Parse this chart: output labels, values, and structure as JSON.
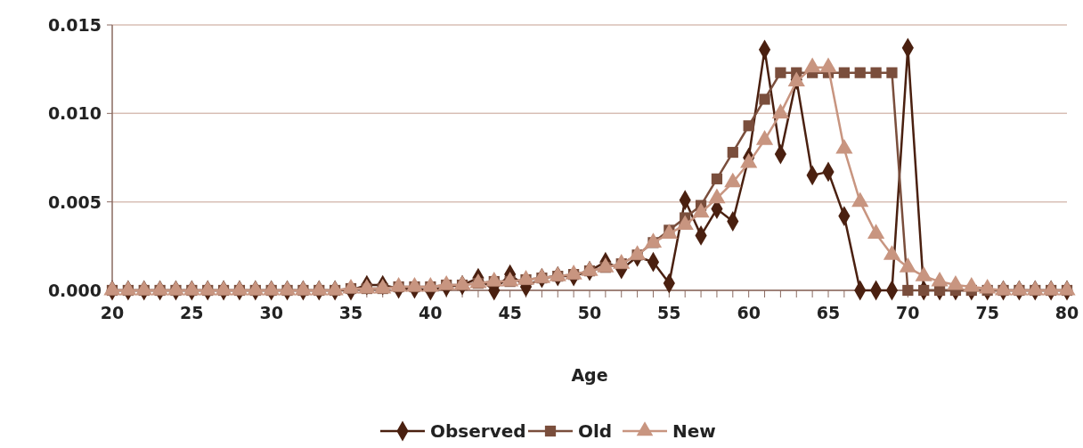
{
  "chart_data": {
    "type": "line",
    "xlabel": "Age",
    "x": [
      20,
      21,
      22,
      23,
      24,
      25,
      26,
      27,
      28,
      29,
      30,
      31,
      32,
      33,
      34,
      35,
      36,
      37,
      38,
      39,
      40,
      41,
      42,
      43,
      44,
      45,
      46,
      47,
      48,
      49,
      50,
      51,
      52,
      53,
      54,
      55,
      56,
      57,
      58,
      59,
      60,
      61,
      62,
      63,
      64,
      65,
      66,
      67,
      68,
      69,
      70,
      71,
      72,
      73,
      74,
      75,
      76,
      77,
      78,
      79,
      80
    ],
    "xlim": [
      20,
      80
    ],
    "xticks": [
      20,
      {
        "value": 21,
        "label": null
      },
      {
        "value": 22,
        "label": null
      },
      {
        "value": 23,
        "label": null
      },
      {
        "value": 24,
        "label": null
      },
      25,
      {
        "value": 26,
        "label": null
      },
      {
        "value": 27,
        "label": null
      },
      {
        "value": 28,
        "label": null
      },
      {
        "value": 29,
        "label": null
      },
      30,
      {
        "value": 31,
        "label": null
      },
      {
        "value": 32,
        "label": null
      },
      {
        "value": 33,
        "label": null
      },
      {
        "value": 34,
        "label": null
      },
      35,
      {
        "value": 36,
        "label": null
      },
      {
        "value": 37,
        "label": null
      },
      {
        "value": 38,
        "label": null
      },
      {
        "value": 39,
        "label": null
      },
      40,
      {
        "value": 41,
        "label": null
      },
      {
        "value": 42,
        "label": null
      },
      {
        "value": 43,
        "label": null
      },
      {
        "value": 44,
        "label": null
      },
      45,
      {
        "value": 46,
        "label": null
      },
      {
        "value": 47,
        "label": null
      },
      {
        "value": 48,
        "label": null
      },
      {
        "value": 49,
        "label": null
      },
      50,
      {
        "value": 51,
        "label": null
      },
      {
        "value": 52,
        "label": null
      },
      {
        "value": 53,
        "label": null
      },
      {
        "value": 54,
        "label": null
      },
      55,
      {
        "value": 56,
        "label": null
      },
      {
        "value": 57,
        "label": null
      },
      {
        "value": 58,
        "label": null
      },
      {
        "value": 59,
        "label": null
      },
      60,
      {
        "value": 61,
        "label": null
      },
      {
        "value": 62,
        "label": null
      },
      {
        "value": 63,
        "label": null
      },
      {
        "value": 64,
        "label": null
      },
      65,
      {
        "value": 66,
        "label": null
      },
      {
        "value": 67,
        "label": null
      },
      {
        "value": 68,
        "label": null
      },
      {
        "value": 69,
        "label": null
      },
      70,
      {
        "value": 71,
        "label": null
      },
      {
        "value": 72,
        "label": null
      },
      {
        "value": 73,
        "label": null
      },
      {
        "value": 74,
        "label": null
      },
      75,
      {
        "value": 76,
        "label": null
      },
      {
        "value": 77,
        "label": null
      },
      {
        "value": 78,
        "label": null
      },
      {
        "value": 79,
        "label": null
      },
      80
    ],
    "ylim": [
      0,
      0.015
    ],
    "yticks": [
      {
        "value": 0,
        "label": "0.000"
      },
      {
        "value": 0.005,
        "label": "0.005"
      },
      {
        "value": 0.01,
        "label": "0.010"
      },
      {
        "value": 0.015,
        "label": "0.015"
      }
    ],
    "grid": "y",
    "legend": "bottom",
    "series": [
      {
        "name": "Observed",
        "color": "#4a2010",
        "marker": "diamond",
        "values": [
          0,
          0,
          0,
          0,
          0,
          0,
          0,
          0,
          0,
          0,
          0,
          0,
          0,
          0,
          0,
          0,
          0.0003,
          0.0003,
          0.0001,
          0.0001,
          0,
          0.0002,
          0.0003,
          0.0007,
          0,
          0.0009,
          0.0002,
          0.0007,
          0.0008,
          0.0008,
          0.0011,
          0.0016,
          0.0012,
          0.0019,
          0.0016,
          0.0004,
          0.0051,
          0.0031,
          0.0046,
          0.0039,
          0.0075,
          0.0136,
          0.0077,
          0.0119,
          0.0065,
          0.0067,
          0.0042,
          0,
          0,
          0,
          0.0137,
          0,
          0,
          0,
          0,
          0,
          0,
          0,
          0,
          0,
          0
        ]
      },
      {
        "name": "Old",
        "color": "#7a4e3c",
        "marker": "square",
        "values": [
          0,
          0,
          0,
          0,
          0,
          0,
          0,
          0,
          0,
          0,
          0,
          0,
          0,
          0,
          0,
          0.0001,
          0.0001,
          0.0001,
          0.0002,
          0.0002,
          0.0002,
          0.0003,
          0.0003,
          0.0004,
          0.0005,
          0.0005,
          0.0006,
          0.0007,
          0.0008,
          0.0009,
          0.0011,
          0.0013,
          0.0015,
          0.002,
          0.0027,
          0.0034,
          0.0041,
          0.0048,
          0.0063,
          0.0078,
          0.0093,
          0.0108,
          0.0123,
          0.0123,
          0.0123,
          0.0123,
          0.0123,
          0.0123,
          0.0123,
          0.0123,
          0,
          0,
          0,
          0,
          0,
          0,
          0,
          0,
          0,
          0,
          0
        ]
      },
      {
        "name": "New",
        "color": "#c89580",
        "marker": "triangle",
        "values": [
          0,
          0,
          0,
          0,
          0,
          0,
          0,
          0,
          0,
          0,
          0,
          0,
          0,
          0,
          0,
          0.0001,
          0.0001,
          0.0001,
          0.0002,
          0.0002,
          0.0002,
          0.0003,
          0.0003,
          0.0004,
          0.0005,
          0.0005,
          0.0006,
          0.0007,
          0.0008,
          0.0009,
          0.0011,
          0.0013,
          0.0015,
          0.002,
          0.0027,
          0.0032,
          0.0037,
          0.0044,
          0.0052,
          0.0061,
          0.0072,
          0.0085,
          0.01,
          0.0118,
          0.0126,
          0.0126,
          0.008,
          0.005,
          0.0032,
          0.002,
          0.0013,
          0.0008,
          0.0005,
          0.0003,
          0.0002,
          0.0001,
          0,
          0,
          0,
          0,
          0
        ]
      }
    ]
  }
}
